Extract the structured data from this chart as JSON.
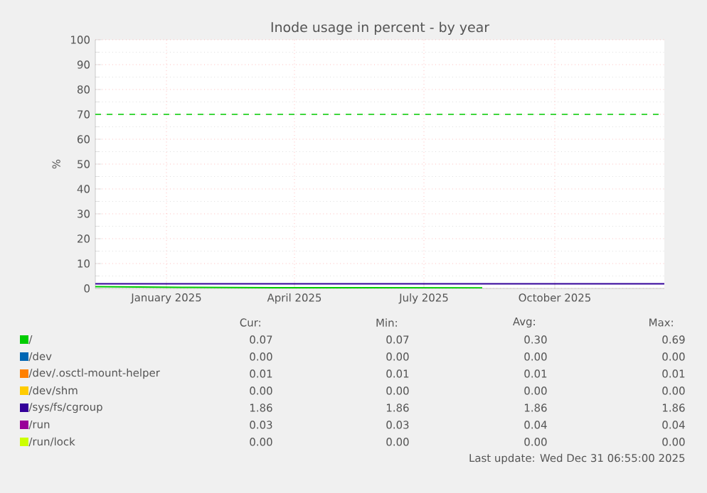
{
  "chart_data": {
    "type": "line",
    "title": "Inode usage in percent - by year",
    "ylabel": "%",
    "xlim": [
      "2024-11-26",
      "2025-12-31"
    ],
    "xticks": [
      {
        "value": "2025-01-15",
        "label": "January 2025"
      },
      {
        "value": "2025-04-15",
        "label": "April 2025"
      },
      {
        "value": "2025-07-15",
        "label": "July 2025"
      },
      {
        "value": "2025-10-15",
        "label": "October 2025"
      }
    ],
    "ylim": [
      0,
      100
    ],
    "yticks": [
      0,
      10,
      20,
      30,
      40,
      50,
      60,
      70,
      80,
      90,
      100
    ],
    "grid": true,
    "legend": "bottom",
    "marker": "none",
    "line_style": "solid",
    "ref_lines": [
      {
        "axis": "y",
        "value": 70,
        "color": "#00cc00",
        "line_style": "dashed"
      }
    ],
    "series": [
      {
        "name": "/",
        "color": "#00cc00",
        "x": [
          "2024-11-26",
          "2025-02-01",
          "2025-04-01",
          "2025-06-01",
          "2025-08-25"
        ],
        "values": [
          0.69,
          0.4,
          0.3,
          0.25,
          0.2
        ]
      },
      {
        "name": "/dev",
        "color": "#0066b3"
      },
      {
        "name": "/dev/.osctl-mount-helper",
        "color": "#ff8000"
      },
      {
        "name": "/dev/shm",
        "color": "#ffcc00"
      },
      {
        "name": "/sys/fs/cgroup",
        "color": "#330099",
        "x": [
          "2024-11-26",
          "2025-12-31"
        ],
        "values": [
          1.86,
          1.86
        ]
      },
      {
        "name": "/run",
        "color": "#990099"
      },
      {
        "name": "/run/lock",
        "color": "#ccff00"
      }
    ],
    "annotations": [
      "Cur:",
      "Min:",
      "Avg:",
      "Max:",
      "0.07",
      "0.07",
      "0.30",
      "0.69",
      "0.00",
      "0.00",
      "0.00",
      "0.00",
      "0.01",
      "0.01",
      "0.01",
      "0.01",
      "0.00",
      "0.00",
      "0.00",
      "0.00",
      "1.86",
      "1.86",
      "1.86",
      "1.86",
      "0.03",
      "0.03",
      "0.04",
      "0.04",
      "0.00",
      "0.00",
      "0.00",
      "0.00",
      "Last update: Wed Dec 31 06:55:00 2025"
    ]
  }
}
